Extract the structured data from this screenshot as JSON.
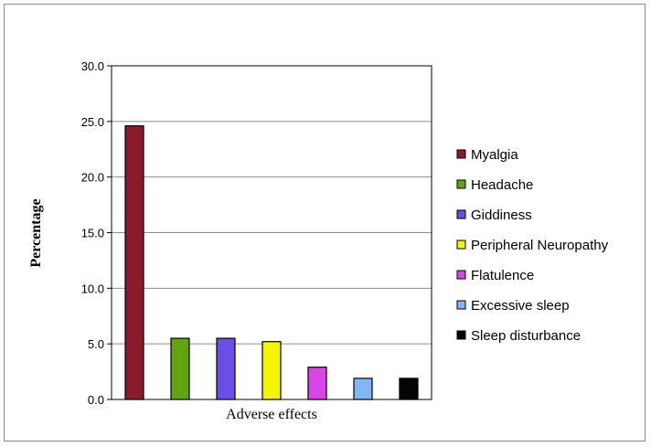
{
  "chart_data": {
    "type": "bar",
    "categories": [
      "Myalgia",
      "Headache",
      "Giddiness",
      "Peripheral Neuropathy",
      "Flatulence",
      "Excessive sleep",
      "Sleep disturbance"
    ],
    "values": [
      24.6,
      5.5,
      5.5,
      5.2,
      2.9,
      1.9,
      1.9
    ],
    "colors": [
      "#8b1a2b",
      "#5ea50f",
      "#6b4ee6",
      "#f5f500",
      "#d945e6",
      "#7fb8f5",
      "#050505"
    ],
    "xlabel": "Adverse effects",
    "ylabel": "Percentage",
    "ylim": [
      0,
      30
    ],
    "yticks": [
      "0.0",
      "5.0",
      "10.0",
      "15.0",
      "20.0",
      "25.0",
      "30.0"
    ],
    "grid": true,
    "legend_position": "right"
  }
}
